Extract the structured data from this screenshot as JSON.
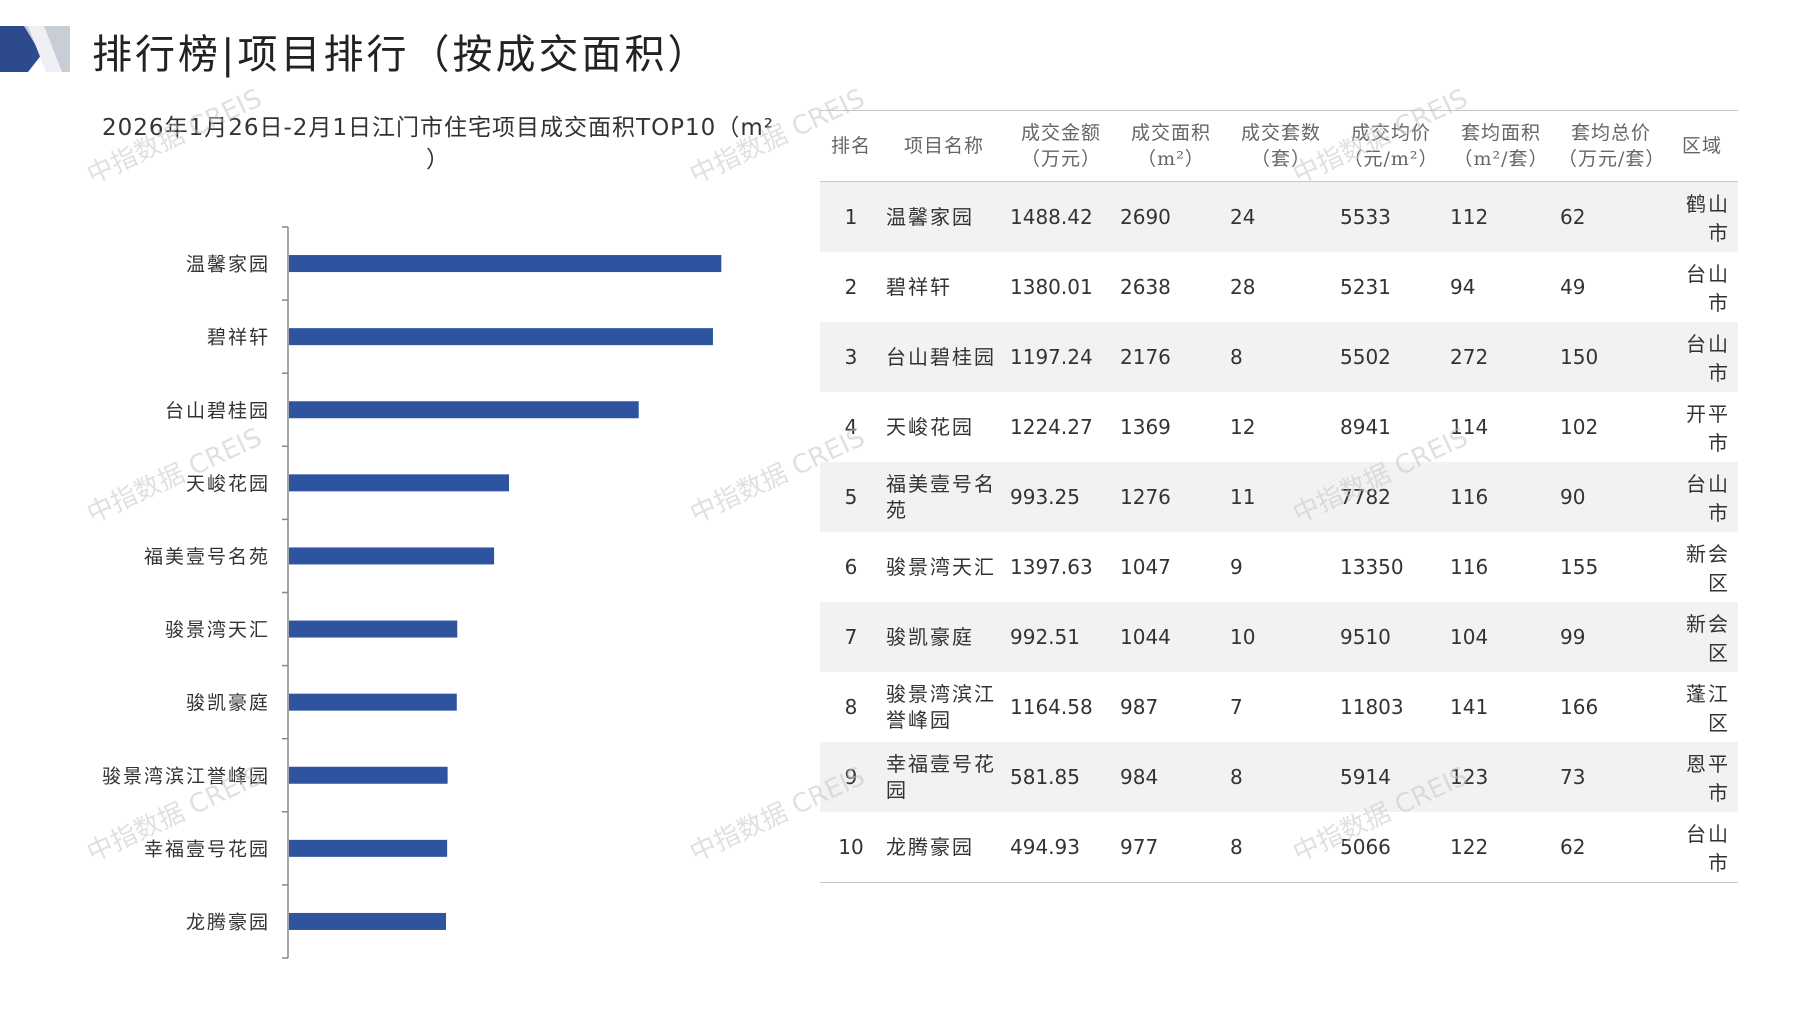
{
  "page": {
    "title": "排行榜|项目排行（按成交面积）",
    "watermark": "中指数据 CREIS"
  },
  "chart_data": {
    "type": "bar",
    "orientation": "horizontal",
    "title": "2026年1月26日-2月1日江门市住宅项目成交面积TOP10（m²",
    "title_line2": "）",
    "categories": [
      "温馨家园",
      "碧祥轩",
      "台山碧桂园",
      "天峻花园",
      "福美壹号名苑",
      "骏景湾天汇",
      "骏凯豪庭",
      "骏景湾滨江誉峰园",
      "幸福壹号花园",
      "龙腾豪园"
    ],
    "values": [
      2690,
      2638,
      2176,
      1369,
      1276,
      1047,
      1044,
      987,
      984,
      977
    ],
    "xlim": [
      0,
      2800
    ],
    "bar_color": "#2e54a0",
    "grid": false,
    "legend": "none"
  },
  "table": {
    "headers": [
      [
        "排名"
      ],
      [
        "项目名称"
      ],
      [
        "成交金额",
        "（万元）"
      ],
      [
        "成交面积",
        "（m²）"
      ],
      [
        "成交套数",
        "（套）"
      ],
      [
        "成交均价",
        "（元/m²）"
      ],
      [
        "套均面积",
        "（m²/套）"
      ],
      [
        "套均总价",
        "（万元/套）"
      ],
      [
        "区域"
      ]
    ],
    "rows": [
      [
        "1",
        "温馨家园",
        "1488.42",
        "2690",
        "24",
        "5533",
        "112",
        "62",
        "鹤山市"
      ],
      [
        "2",
        "碧祥轩",
        "1380.01",
        "2638",
        "28",
        "5231",
        "94",
        "49",
        "台山市"
      ],
      [
        "3",
        "台山碧桂园",
        "1197.24",
        "2176",
        "8",
        "5502",
        "272",
        "150",
        "台山市"
      ],
      [
        "4",
        "天峻花园",
        "1224.27",
        "1369",
        "12",
        "8941",
        "114",
        "102",
        "开平市"
      ],
      [
        "5",
        "福美壹号名苑",
        "993.25",
        "1276",
        "11",
        "7782",
        "116",
        "90",
        "台山市"
      ],
      [
        "6",
        "骏景湾天汇",
        "1397.63",
        "1047",
        "9",
        "13350",
        "116",
        "155",
        "新会区"
      ],
      [
        "7",
        "骏凯豪庭",
        "992.51",
        "1044",
        "10",
        "9510",
        "104",
        "99",
        "新会区"
      ],
      [
        "8",
        "骏景湾滨江誉峰园",
        "1164.58",
        "987",
        "7",
        "11803",
        "141",
        "166",
        "蓬江区"
      ],
      [
        "9",
        "幸福壹号花园",
        "581.85",
        "984",
        "8",
        "5914",
        "123",
        "73",
        "恩平市"
      ],
      [
        "10",
        "龙腾豪园",
        "494.93",
        "977",
        "8",
        "5066",
        "122",
        "62",
        "台山市"
      ]
    ]
  }
}
